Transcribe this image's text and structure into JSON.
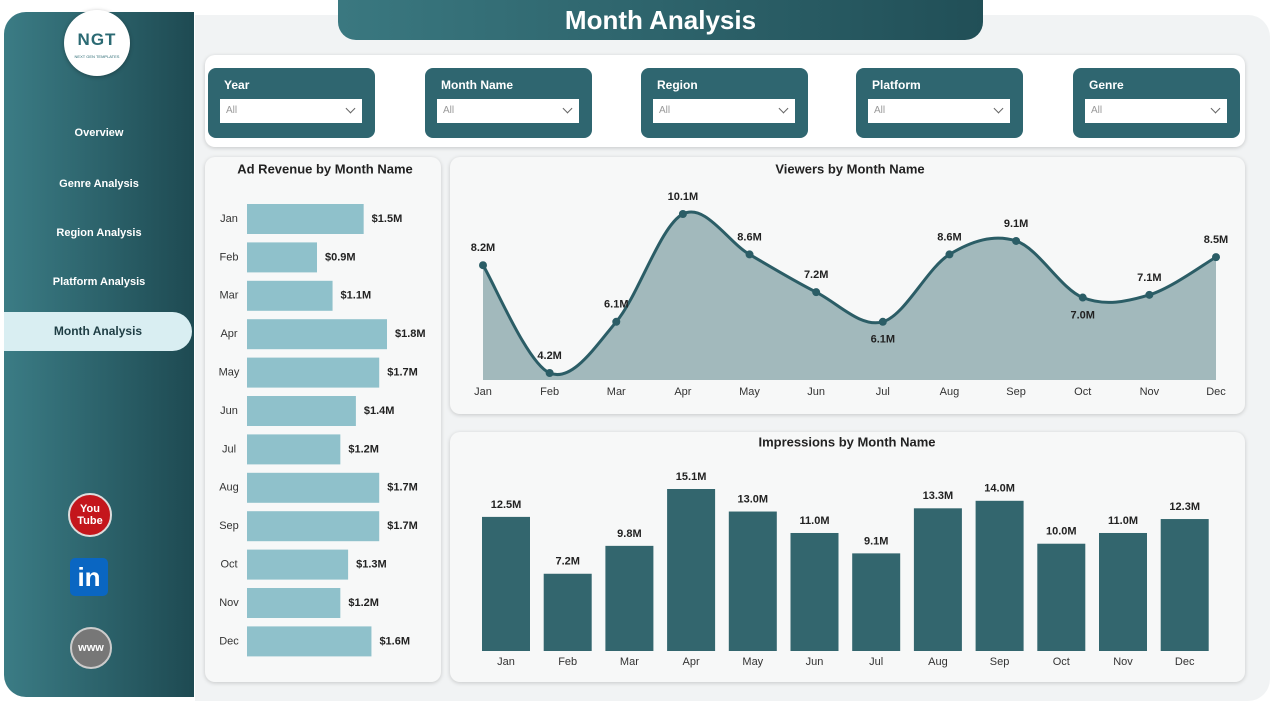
{
  "header": {
    "title": "Month Analysis"
  },
  "logo": {
    "text": "NGT",
    "subtext": "NEXT GEN TEMPLATES"
  },
  "nav": [
    "Overview",
    "Genre Analysis",
    "Region Analysis",
    "Platform Analysis",
    "Month Analysis"
  ],
  "icons": {
    "youtube": [
      "You",
      "Tube"
    ],
    "linkedin": "in",
    "web": "www"
  },
  "filters": [
    {
      "label": "Year",
      "value": "All"
    },
    {
      "label": "Month Name",
      "value": "All"
    },
    {
      "label": "Region",
      "value": "All"
    },
    {
      "label": "Platform",
      "value": "All"
    },
    {
      "label": "Genre",
      "value": "All"
    }
  ],
  "chart_data": [
    {
      "type": "bar",
      "orientation": "horizontal",
      "title": "Ad Revenue by Month Name",
      "color": "#8fc1cb",
      "categories": [
        "Jan",
        "Feb",
        "Mar",
        "Apr",
        "May",
        "Jun",
        "Jul",
        "Aug",
        "Sep",
        "Oct",
        "Nov",
        "Dec"
      ],
      "values": [
        1500000,
        900000,
        1100000,
        1800000,
        1700000,
        1400000,
        1200000,
        1700000,
        1700000,
        1300000,
        1200000,
        1600000
      ],
      "value_labels": [
        "$1.5M",
        "$0.9M",
        "$1.1M",
        "$1.8M",
        "$1.7M",
        "$1.4M",
        "$1.2M",
        "$1.7M",
        "$1.7M",
        "$1.3M",
        "$1.2M",
        "$1.6M"
      ]
    },
    {
      "type": "area",
      "title": "Viewers by Month Name",
      "color": "#2b5d66",
      "fill": "#a2b9bc",
      "categories": [
        "Jan",
        "Feb",
        "Mar",
        "Apr",
        "May",
        "Jun",
        "Jul",
        "Aug",
        "Sep",
        "Oct",
        "Nov",
        "Dec"
      ],
      "values": [
        8200000,
        4200000,
        6100000,
        10100000,
        8600000,
        7200000,
        6100000,
        8600000,
        9100000,
        7000000,
        7100000,
        8500000
      ],
      "value_labels": [
        "8.2M",
        "4.2M",
        "6.1M",
        "10.1M",
        "8.6M",
        "7.2M",
        "6.1M",
        "8.6M",
        "9.1M",
        "7.0M",
        "7.1M",
        "8.5M"
      ]
    },
    {
      "type": "bar",
      "orientation": "vertical",
      "title": "Impressions by Month Name",
      "color": "#33666e",
      "categories": [
        "Jan",
        "Feb",
        "Mar",
        "Apr",
        "May",
        "Jun",
        "Jul",
        "Aug",
        "Sep",
        "Oct",
        "Nov",
        "Dec"
      ],
      "values": [
        12500000,
        7200000,
        9800000,
        15100000,
        13000000,
        11000000,
        9100000,
        13300000,
        14000000,
        10000000,
        11000000,
        12300000
      ],
      "value_labels": [
        "12.5M",
        "7.2M",
        "9.8M",
        "15.1M",
        "13.0M",
        "11.0M",
        "9.1M",
        "13.3M",
        "14.0M",
        "10.0M",
        "11.0M",
        "12.3M"
      ]
    }
  ]
}
